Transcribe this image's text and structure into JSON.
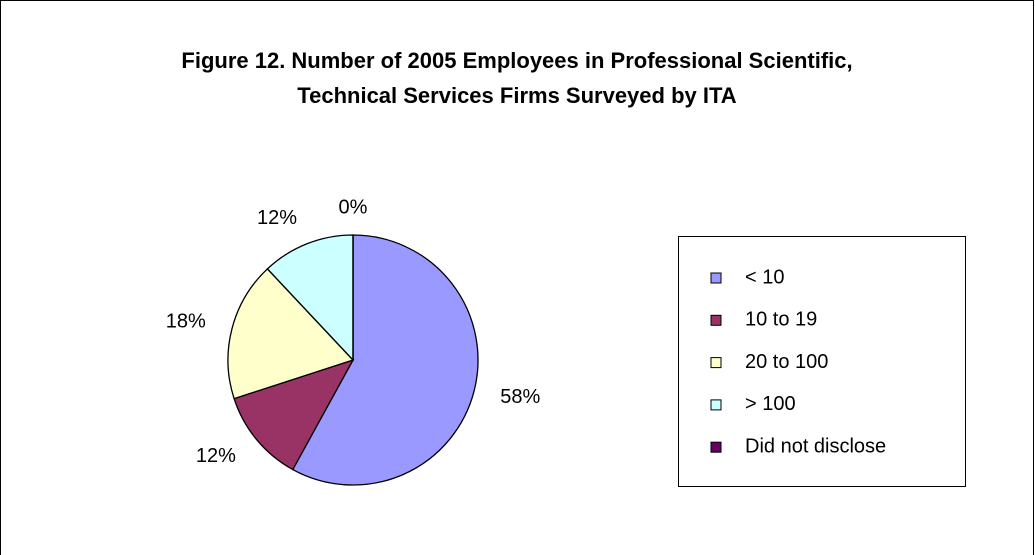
{
  "chart_data": {
    "type": "pie",
    "title": [
      "Figure 12.  Number of 2005 Employees in Professional Scientific,",
      "Technical Services Firms Surveyed by ITA"
    ],
    "categories": [
      "< 10",
      "10 to 19",
      "20 to 100",
      "> 100",
      "Did not disclose"
    ],
    "values": [
      58,
      12,
      18,
      12,
      0
    ],
    "value_labels": [
      "58%",
      "12%",
      "18%",
      "12%",
      "0%"
    ],
    "colors": [
      "#9999ff",
      "#993366",
      "#ffffcc",
      "#ccffff",
      "#660066"
    ],
    "legend": "right"
  }
}
